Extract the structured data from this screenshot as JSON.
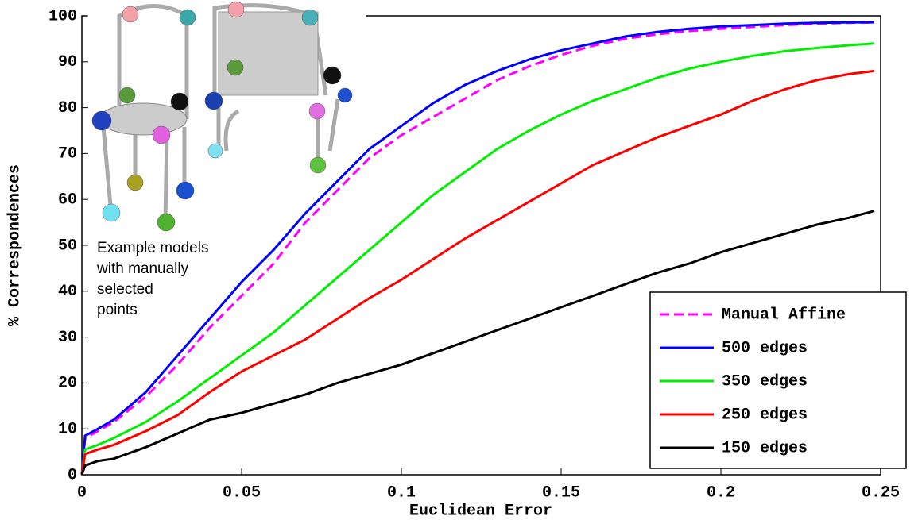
{
  "chart_data": {
    "type": "line",
    "xlabel": "Euclidean Error",
    "ylabel": "% Correspondences",
    "annotation": [
      "Example models",
      "with manually",
      "selected",
      "points"
    ],
    "x": [
      0,
      0.001,
      0.005,
      0.01,
      0.02,
      0.03,
      0.04,
      0.05,
      0.06,
      0.07,
      0.08,
      0.09,
      0.1,
      0.11,
      0.12,
      0.13,
      0.14,
      0.15,
      0.16,
      0.17,
      0.18,
      0.19,
      0.2,
      0.21,
      0.22,
      0.23,
      0.24,
      0.248
    ],
    "series": [
      {
        "name": "Manual Affine",
        "color": "#ff00ff",
        "style": "dashed",
        "values": [
          0,
          8,
          9.5,
          11.5,
          17,
          24,
          32,
          39,
          46,
          55,
          62,
          69,
          74,
          78,
          82,
          86,
          89,
          91.5,
          93.5,
          95,
          96,
          96.7,
          97.2,
          97.6,
          98,
          98.3,
          98.5,
          98.6
        ]
      },
      {
        "name": "500 edges",
        "color": "#0000ff",
        "style": "solid",
        "values": [
          0,
          8.5,
          10,
          12,
          18,
          26,
          34,
          42,
          49,
          57,
          64,
          71,
          76,
          81,
          85,
          88,
          90.5,
          92.5,
          94,
          95.5,
          96.5,
          97.2,
          97.7,
          98,
          98.3,
          98.5,
          98.6,
          98.6
        ]
      },
      {
        "name": "350 edges",
        "color": "#00ee00",
        "style": "solid",
        "values": [
          0,
          5.5,
          6.5,
          8,
          11.5,
          16,
          21,
          26,
          31,
          37,
          43,
          49,
          55,
          61,
          66,
          71,
          75,
          78.5,
          81.5,
          84,
          86.5,
          88.5,
          90,
          91.3,
          92.3,
          93,
          93.6,
          94
        ]
      },
      {
        "name": "250 edges",
        "color": "#ff0000",
        "style": "solid",
        "values": [
          0,
          4.5,
          5.5,
          6.5,
          9.5,
          13,
          18,
          22.5,
          26,
          29.5,
          34,
          38.5,
          42.5,
          47,
          51.5,
          55.5,
          59.5,
          63.5,
          67.5,
          70.5,
          73.5,
          76,
          78.5,
          81.5,
          84,
          86,
          87.3,
          88
        ]
      },
      {
        "name": "150 edges",
        "color": "#000000",
        "style": "solid",
        "values": [
          0,
          2,
          3,
          3.5,
          6,
          9,
          12,
          13.5,
          15.5,
          17.5,
          20,
          22,
          24,
          26.5,
          29,
          31.5,
          34,
          36.5,
          39,
          41.5,
          44,
          46,
          48.5,
          50.5,
          52.5,
          54.5,
          56,
          57.5
        ]
      }
    ],
    "xlim": [
      0,
      0.25
    ],
    "xticks": [
      0,
      0.05,
      0.1,
      0.15,
      0.2,
      0.25
    ],
    "ylim": [
      0,
      100
    ],
    "yticks": [
      0,
      10,
      20,
      30,
      40,
      50,
      60,
      70,
      80,
      90,
      100
    ],
    "grid": false,
    "legend": "lower right"
  }
}
